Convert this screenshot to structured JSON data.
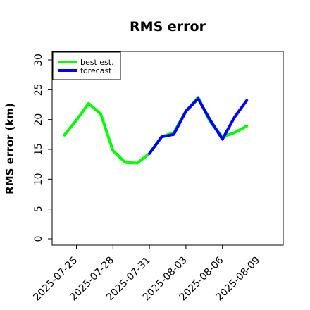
{
  "chart_data": {
    "type": "line",
    "title": "RMS error",
    "xlabel": "",
    "ylabel": "RMS error (km)",
    "ylim": [
      0,
      30
    ],
    "yticks": [
      0,
      5,
      10,
      15,
      20,
      25,
      30
    ],
    "xlim": [
      "2025-07-23",
      "2025-08-11"
    ],
    "xticks": [
      "2025-07-25",
      "2025-07-28",
      "2025-07-31",
      "2025-08-03",
      "2025-08-06",
      "2025-08-09"
    ],
    "highlighted_xtick": "2025-07-31",
    "grid": false,
    "legend_position": "top-left",
    "series": [
      {
        "name": "best est.",
        "color": "#00ff00",
        "x": [
          "2025-07-24",
          "2025-07-25",
          "2025-07-26",
          "2025-07-27",
          "2025-07-28",
          "2025-07-29",
          "2025-07-30",
          "2025-07-31",
          "2025-08-01",
          "2025-08-02",
          "2025-08-03",
          "2025-08-04",
          "2025-08-05",
          "2025-08-06",
          "2025-08-07",
          "2025-08-08"
        ],
        "values": [
          17.4,
          19.9,
          22.7,
          20.9,
          14.8,
          12.8,
          12.7,
          14.3,
          17.1,
          17.8,
          21.4,
          23.7,
          19.6,
          17.1,
          17.8,
          18.9
        ]
      },
      {
        "name": "forecast",
        "color": "#0000ff",
        "x": [
          "2025-07-31",
          "2025-08-01",
          "2025-08-02",
          "2025-08-03",
          "2025-08-04",
          "2025-08-05",
          "2025-08-06",
          "2025-08-07",
          "2025-08-08"
        ],
        "values": [
          14.3,
          17.1,
          17.5,
          21.4,
          23.5,
          19.9,
          16.7,
          20.4,
          23.2
        ]
      }
    ]
  }
}
